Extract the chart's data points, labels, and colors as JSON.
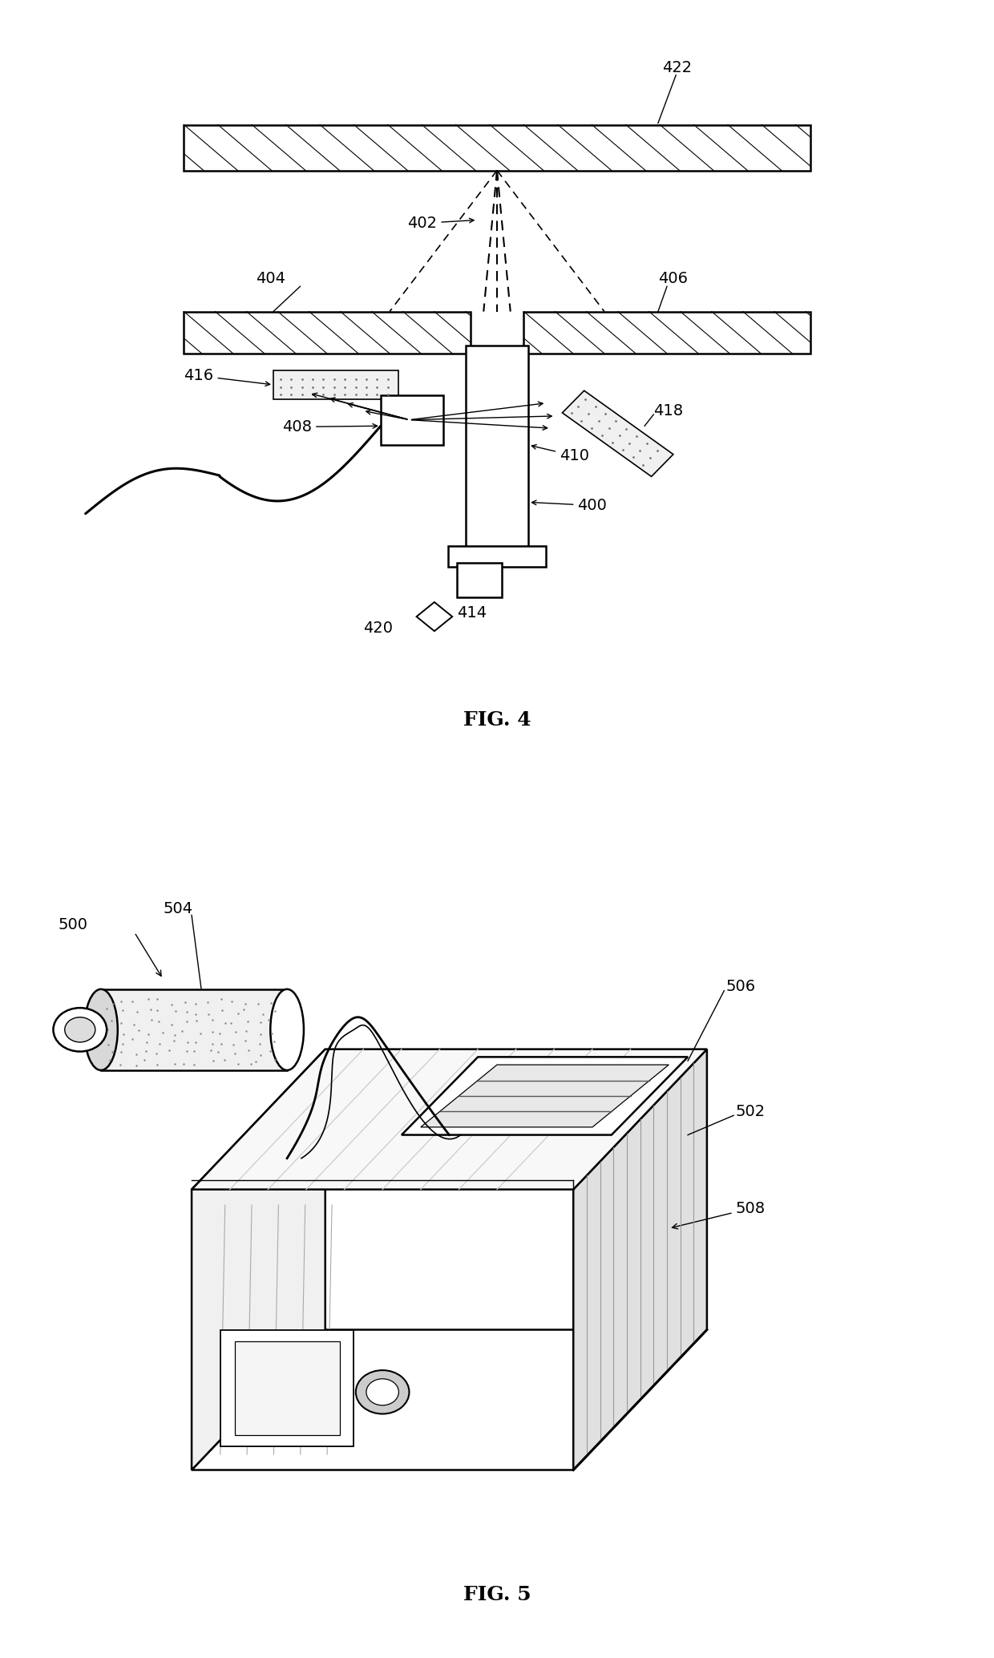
{
  "fig_width": 12.4,
  "fig_height": 20.68,
  "bg_color": "#ffffff",
  "line_color": "#000000",
  "fig4_title": "FIG. 4",
  "fig5_title": "FIG. 5"
}
